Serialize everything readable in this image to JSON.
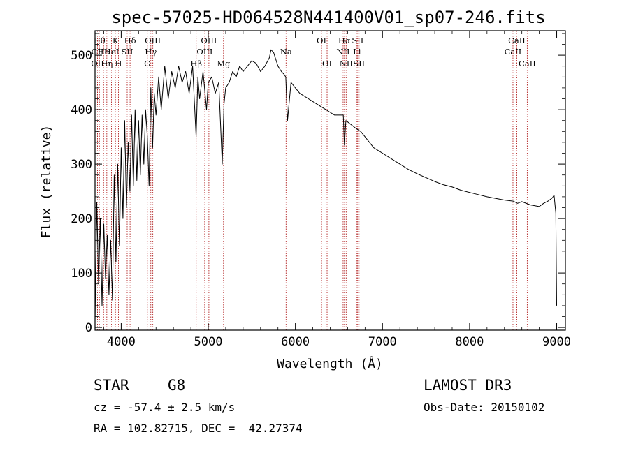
{
  "chart_data": {
    "type": "line",
    "title": "spec-57025-HD064528N441400V01_sp07-246.fits",
    "xlabel": "Wavelength (Å)",
    "ylabel": "Flux (relative)",
    "xlim": [
      3700,
      9100
    ],
    "ylim": [
      -5,
      545
    ],
    "x_ticks": [
      4000,
      5000,
      6000,
      7000,
      8000,
      9000
    ],
    "y_ticks": [
      0,
      100,
      200,
      300,
      400,
      500
    ],
    "series": [
      {
        "name": "flux",
        "x": [
          3700,
          3720,
          3740,
          3760,
          3780,
          3800,
          3820,
          3840,
          3860,
          3880,
          3900,
          3920,
          3940,
          3960,
          3980,
          4000,
          4020,
          4040,
          4060,
          4080,
          4100,
          4120,
          4140,
          4160,
          4180,
          4200,
          4220,
          4240,
          4260,
          4280,
          4300,
          4320,
          4340,
          4360,
          4380,
          4400,
          4430,
          4460,
          4500,
          4540,
          4580,
          4620,
          4660,
          4700,
          4740,
          4780,
          4820,
          4860,
          4880,
          4900,
          4940,
          4980,
          5000,
          5040,
          5080,
          5120,
          5160,
          5180,
          5200,
          5240,
          5280,
          5320,
          5360,
          5400,
          5450,
          5500,
          5550,
          5600,
          5650,
          5700,
          5720,
          5750,
          5780,
          5800,
          5840,
          5870,
          5890,
          5910,
          5950,
          6000,
          6050,
          6100,
          6150,
          6200,
          6250,
          6300,
          6350,
          6400,
          6450,
          6500,
          6550,
          6563,
          6580,
          6620,
          6660,
          6700,
          6750,
          6800,
          6850,
          6900,
          6950,
          7000,
          7100,
          7200,
          7300,
          7400,
          7500,
          7600,
          7700,
          7800,
          7900,
          8000,
          8100,
          8200,
          8300,
          8400,
          8500,
          8550,
          8600,
          8700,
          8800,
          8850,
          8900,
          8950,
          8970,
          8990,
          9000
        ],
        "values": [
          10,
          230,
          80,
          200,
          40,
          190,
          90,
          170,
          60,
          160,
          50,
          280,
          120,
          300,
          150,
          330,
          200,
          380,
          220,
          340,
          250,
          390,
          260,
          400,
          270,
          380,
          280,
          390,
          300,
          400,
          350,
          260,
          440,
          330,
          430,
          390,
          460,
          400,
          480,
          420,
          470,
          440,
          480,
          450,
          470,
          430,
          480,
          350,
          460,
          420,
          470,
          400,
          450,
          460,
          430,
          450,
          300,
          410,
          440,
          450,
          470,
          460,
          480,
          470,
          480,
          490,
          485,
          470,
          480,
          495,
          510,
          505,
          490,
          480,
          470,
          465,
          460,
          380,
          450,
          440,
          430,
          425,
          420,
          415,
          410,
          405,
          400,
          395,
          390,
          390,
          390,
          335,
          380,
          375,
          370,
          365,
          360,
          350,
          340,
          330,
          325,
          320,
          310,
          300,
          290,
          282,
          275,
          268,
          262,
          258,
          252,
          248,
          244,
          240,
          237,
          234,
          232,
          228,
          231,
          225,
          222,
          228,
          232,
          238,
          243,
          210,
          40
        ]
      }
    ],
    "line_markers": [
      {
        "x": 3750,
        "row": 1,
        "label": "Hθ"
      },
      {
        "x": 3728,
        "row": 2,
        "label": "CII"
      },
      {
        "x": 3728,
        "row": 3,
        "label": "OII"
      },
      {
        "x": 3798,
        "row": 2,
        "label": "He"
      },
      {
        "x": 3835,
        "row": 3,
        "label": "Hη"
      },
      {
        "x": 3889,
        "row": 2,
        "label": "HeI"
      },
      {
        "x": 3934,
        "row": 1,
        "label": "K"
      },
      {
        "x": 3969,
        "row": 3,
        "label": "H"
      },
      {
        "x": 4069,
        "row": 2,
        "label": "SII"
      },
      {
        "x": 4102,
        "row": 1,
        "label": "Hδ"
      },
      {
        "x": 4300,
        "row": 3,
        "label": "G"
      },
      {
        "x": 4340,
        "row": 2,
        "label": "Hγ"
      },
      {
        "x": 4363,
        "row": 1,
        "label": "OIII"
      },
      {
        "x": 4861,
        "row": 3,
        "label": "Hβ"
      },
      {
        "x": 4959,
        "row": 2,
        "label": "OIII"
      },
      {
        "x": 5007,
        "row": 1,
        "label": "OIII"
      },
      {
        "x": 5175,
        "row": 3,
        "label": "Mg"
      },
      {
        "x": 5893,
        "row": 2,
        "label": "Na"
      },
      {
        "x": 6300,
        "row": 1,
        "label": "OI"
      },
      {
        "x": 6364,
        "row": 3,
        "label": "OI"
      },
      {
        "x": 6548,
        "row": 2,
        "label": "NII"
      },
      {
        "x": 6563,
        "row": 1,
        "label": "Hα"
      },
      {
        "x": 6583,
        "row": 3,
        "label": "NII"
      },
      {
        "x": 6707,
        "row": 2,
        "label": "Li"
      },
      {
        "x": 6716,
        "row": 1,
        "label": "SII"
      },
      {
        "x": 6731,
        "row": 3,
        "label": "SII"
      },
      {
        "x": 8498,
        "row": 2,
        "label": "CaII"
      },
      {
        "x": 8542,
        "row": 1,
        "label": "CaII"
      },
      {
        "x": 8662,
        "row": 3,
        "label": "CaII"
      }
    ]
  },
  "info": {
    "object_class": "STAR",
    "subclass": "G8",
    "survey": "LAMOST DR3",
    "redshift_text": "cz = -57.4 ± 2.5 km/s",
    "obs_date": "Obs-Date: 20150102",
    "coords": "RA = 102.82715, DEC =  42.27374"
  },
  "colors": {
    "marker": "#b22222",
    "trace": "#000000"
  }
}
